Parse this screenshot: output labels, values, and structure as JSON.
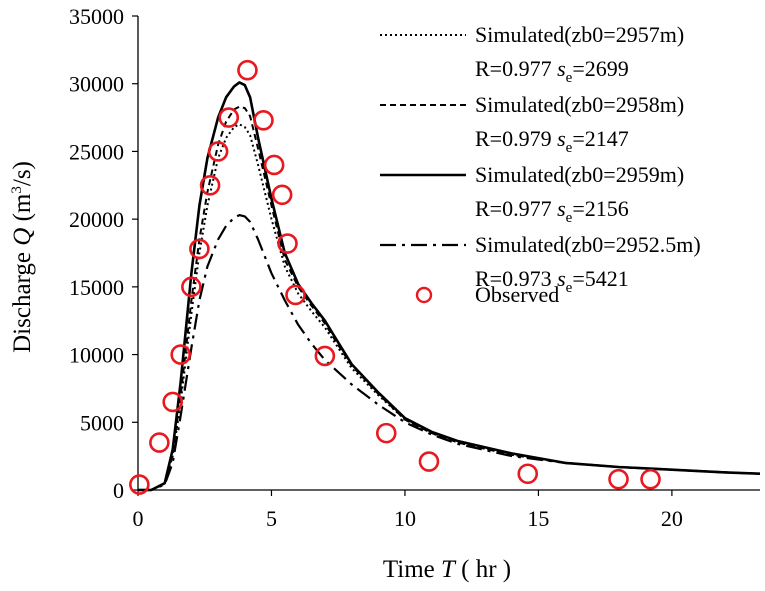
{
  "chart_data": {
    "type": "line",
    "xlabel": {
      "prefix": "Time ",
      "symbol": "T",
      "unit": " ( hr )"
    },
    "ylabel": {
      "prefix": "Discharge ",
      "symbol": "Q",
      "unit_open": " (m",
      "unit_sup": "3",
      "unit_close": "/s)"
    },
    "xlim": [
      0,
      23.3
    ],
    "ylim": [
      0,
      35000
    ],
    "xticks": [
      0,
      5,
      10,
      15,
      20
    ],
    "yticks": [
      0,
      5000,
      10000,
      15000,
      20000,
      25000,
      30000,
      35000
    ],
    "xtick_labels": [
      "0",
      "5",
      "10",
      "15",
      "20"
    ],
    "ytick_labels": [
      "0",
      "5000",
      "10000",
      "15000",
      "20000",
      "25000",
      "30000",
      "35000"
    ],
    "series": [
      {
        "name": "Simulated(zb0=2957m)",
        "stats_prefix": "R=0.977  ",
        "stats_s": "s",
        "stats_sub": "e",
        "stats_value": "=2699",
        "style": "dotted",
        "x": [
          0,
          0.5,
          1,
          1.3,
          1.6,
          2,
          2.3,
          2.6,
          3,
          3.3,
          3.6,
          3.8,
          4,
          4.2,
          4.5,
          5,
          5.5,
          6,
          6.5,
          7,
          7.5,
          8,
          9,
          10,
          11,
          12,
          14,
          16,
          18,
          20,
          22,
          23.3
        ],
        "y": [
          0,
          0,
          500,
          2500,
          6500,
          13000,
          17500,
          21000,
          24500,
          26000,
          26800,
          27000,
          26800,
          26200,
          24000,
          20000,
          16500,
          14500,
          13200,
          12000,
          10500,
          9000,
          7000,
          5200,
          4200,
          3500,
          2600,
          2000,
          1700,
          1500,
          1300,
          1200
        ]
      },
      {
        "name": "Simulated(zb0=2958m)",
        "stats_prefix": "R=0.979  ",
        "stats_s": "s",
        "stats_sub": "e",
        "stats_value": "=2147",
        "style": "dashed",
        "x": [
          0,
          0.5,
          1,
          1.3,
          1.6,
          2,
          2.3,
          2.6,
          3,
          3.3,
          3.6,
          3.8,
          4,
          4.2,
          4.5,
          5,
          5.5,
          6,
          6.5,
          7,
          7.5,
          8,
          9,
          10,
          11,
          12,
          14,
          16,
          18,
          20,
          22,
          23.3
        ],
        "y": [
          0,
          0,
          500,
          2700,
          7000,
          14000,
          18500,
          22000,
          25500,
          27200,
          28100,
          28300,
          28200,
          27600,
          25200,
          21000,
          17000,
          15000,
          13600,
          12300,
          10700,
          9200,
          7100,
          5200,
          4200,
          3500,
          2600,
          2000,
          1700,
          1500,
          1300,
          1200
        ]
      },
      {
        "name": "Simulated(zb0=2959m)",
        "stats_prefix": "R=0.977  ",
        "stats_s": "s",
        "stats_sub": "e",
        "stats_value": "=2156",
        "style": "solid",
        "x": [
          0,
          0.5,
          1,
          1.3,
          1.6,
          2,
          2.3,
          2.6,
          3,
          3.3,
          3.6,
          3.8,
          4,
          4.2,
          4.5,
          5,
          5.5,
          6,
          6.5,
          7,
          7.5,
          8,
          9,
          10,
          11,
          12,
          14,
          16,
          18,
          20,
          22,
          23.3
        ],
        "y": [
          0,
          0,
          500,
          3000,
          8000,
          16000,
          21000,
          24500,
          27500,
          29000,
          29800,
          30100,
          29900,
          29000,
          26000,
          21500,
          17500,
          15200,
          13800,
          12500,
          10900,
          9300,
          7200,
          5300,
          4300,
          3600,
          2700,
          2000,
          1700,
          1500,
          1300,
          1200
        ]
      },
      {
        "name": "Simulated(zb0=2952.5m)",
        "stats_prefix": "R=0.973  ",
        "stats_s": "s",
        "stats_sub": "e",
        "stats_value": "=5421",
        "style": "dashdot",
        "x": [
          0,
          0.5,
          1,
          1.3,
          1.6,
          2,
          2.3,
          2.6,
          3,
          3.3,
          3.6,
          3.8,
          4,
          4.2,
          4.5,
          5,
          5.5,
          6,
          6.5,
          7,
          8,
          9,
          10,
          11,
          12,
          14,
          16,
          18,
          20,
          22,
          23.3
        ],
        "y": [
          0,
          0,
          400,
          2000,
          5500,
          10500,
          14000,
          16500,
          18500,
          19500,
          20100,
          20300,
          20200,
          19800,
          18500,
          16000,
          14000,
          12200,
          10800,
          9600,
          7800,
          6300,
          5000,
          4100,
          3400,
          2500,
          2000,
          1700,
          1500,
          1300,
          1200
        ]
      }
    ],
    "observed": {
      "name": "Observed",
      "style": "circle",
      "color": "#e8191f",
      "x": [
        0.05,
        0.8,
        1.3,
        1.6,
        2.0,
        2.3,
        2.7,
        3.0,
        3.4,
        4.1,
        4.7,
        5.1,
        5.4,
        5.6,
        5.9,
        7.0,
        9.3,
        10.9,
        14.6,
        18.0,
        19.2
      ],
      "y": [
        400,
        3500,
        6500,
        10000,
        15000,
        17800,
        22500,
        25000,
        27500,
        31000,
        27300,
        24000,
        21800,
        18200,
        14400,
        9900,
        4200,
        2100,
        1200,
        800,
        800
      ]
    }
  }
}
